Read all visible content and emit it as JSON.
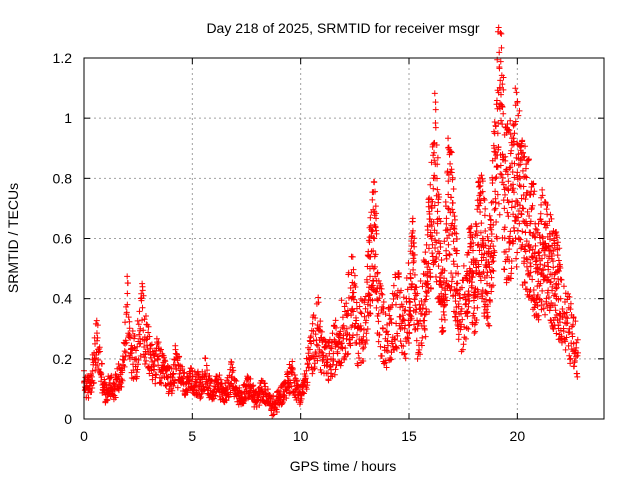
{
  "chart_data": {
    "type": "scatter",
    "title": "Day 218 of 2025, SRMTID for receiver msgr",
    "xlabel": "GPS time / hours",
    "ylabel": "SRMTID / TECUs",
    "xlim": [
      0,
      24
    ],
    "ylim": [
      0,
      1.2
    ],
    "grid": true,
    "marker": "+",
    "series_color": "#ff0000",
    "x_ticks": [
      {
        "value": 0,
        "label": "0"
      },
      {
        "value": 5,
        "label": "5"
      },
      {
        "value": 10,
        "label": "10"
      },
      {
        "value": 15,
        "label": "15"
      },
      {
        "value": 20,
        "label": "20"
      }
    ],
    "y_ticks": [
      {
        "value": 0,
        "label": "0"
      },
      {
        "value": 0.2,
        "label": "0.2"
      },
      {
        "value": 0.4,
        "label": "0.4"
      },
      {
        "value": 0.6,
        "label": "0.6"
      },
      {
        "value": 0.8,
        "label": "0.8"
      },
      {
        "value": 1.0,
        "label": "1"
      },
      {
        "value": 1.2,
        "label": "1.2"
      }
    ],
    "series": [
      {
        "name": "SRMTID",
        "x": [
          0.0,
          0.2,
          0.4,
          0.5,
          0.6,
          0.8,
          1.0,
          1.2,
          1.4,
          1.6,
          1.8,
          1.9,
          2.0,
          2.1,
          2.2,
          2.4,
          2.6,
          2.7,
          2.8,
          3.0,
          3.2,
          3.4,
          3.6,
          3.8,
          4.0,
          4.2,
          4.4,
          4.6,
          4.8,
          5.0,
          5.2,
          5.4,
          5.6,
          5.8,
          6.0,
          6.2,
          6.4,
          6.6,
          6.8,
          7.0,
          7.2,
          7.4,
          7.6,
          7.8,
          8.0,
          8.2,
          8.4,
          8.6,
          8.8,
          9.0,
          9.2,
          9.4,
          9.6,
          9.8,
          10.0,
          10.2,
          10.4,
          10.6,
          10.8,
          11.0,
          11.2,
          11.4,
          11.6,
          11.8,
          12.0,
          12.2,
          12.4,
          12.6,
          12.8,
          13.0,
          13.2,
          13.4,
          13.6,
          13.8,
          14.0,
          14.2,
          14.4,
          14.6,
          14.8,
          15.0,
          15.2,
          15.4,
          15.6,
          15.8,
          16.0,
          16.2,
          16.4,
          16.6,
          16.8,
          17.0,
          17.2,
          17.4,
          17.6,
          17.8,
          18.0,
          18.2,
          18.4,
          18.6,
          18.8,
          19.0,
          19.1,
          19.2,
          19.3,
          19.4,
          19.6,
          19.8,
          20.0,
          20.2,
          20.4,
          20.6,
          20.8,
          21.0,
          21.2,
          21.4,
          21.6,
          21.8,
          22.0,
          22.2,
          22.4,
          22.6,
          22.8
        ],
        "y": [
          0.12,
          0.1,
          0.16,
          0.2,
          0.26,
          0.15,
          0.08,
          0.12,
          0.1,
          0.14,
          0.18,
          0.25,
          0.38,
          0.28,
          0.22,
          0.2,
          0.3,
          0.37,
          0.26,
          0.22,
          0.18,
          0.2,
          0.16,
          0.14,
          0.12,
          0.18,
          0.15,
          0.12,
          0.1,
          0.14,
          0.12,
          0.1,
          0.15,
          0.11,
          0.09,
          0.12,
          0.08,
          0.1,
          0.14,
          0.1,
          0.07,
          0.09,
          0.11,
          0.08,
          0.06,
          0.1,
          0.08,
          0.05,
          0.04,
          0.07,
          0.09,
          0.12,
          0.15,
          0.1,
          0.08,
          0.12,
          0.2,
          0.26,
          0.3,
          0.22,
          0.18,
          0.2,
          0.24,
          0.28,
          0.3,
          0.35,
          0.42,
          0.28,
          0.3,
          0.32,
          0.5,
          0.6,
          0.35,
          0.3,
          0.26,
          0.32,
          0.38,
          0.34,
          0.3,
          0.4,
          0.52,
          0.3,
          0.35,
          0.45,
          0.62,
          0.8,
          0.55,
          0.4,
          0.7,
          0.65,
          0.45,
          0.35,
          0.38,
          0.5,
          0.42,
          0.58,
          0.6,
          0.45,
          0.55,
          0.8,
          0.95,
          1.1,
          0.98,
          0.7,
          0.72,
          0.78,
          0.82,
          0.68,
          0.65,
          0.62,
          0.55,
          0.5,
          0.58,
          0.52,
          0.48,
          0.45,
          0.4,
          0.32,
          0.3,
          0.25,
          0.22
        ]
      }
    ]
  }
}
